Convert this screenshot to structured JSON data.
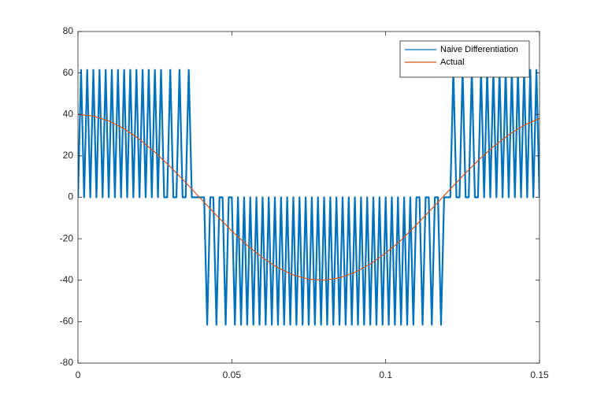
{
  "chart_data": {
    "type": "line",
    "xlim": [
      0,
      0.15
    ],
    "xticks": [
      0,
      0.05,
      0.1,
      0.15
    ],
    "ylim": [
      -80,
      80
    ],
    "yticks": [
      -80,
      -60,
      -40,
      -20,
      0,
      20,
      40,
      60,
      80
    ],
    "legend": "upper right",
    "series": [
      {
        "name": "Naive Differentiation",
        "color": "#0072BD",
        "x": [
          0,
          0.001,
          0.002,
          0.003,
          0.004,
          0.005,
          0.006,
          0.007,
          0.008,
          0.009,
          0.01,
          0.011,
          0.012,
          0.013,
          0.014,
          0.015,
          0.016,
          0.017,
          0.018,
          0.019,
          0.02,
          0.021,
          0.022,
          0.023,
          0.024,
          0.025,
          0.026,
          0.027,
          0.028,
          0.029,
          0.03,
          0.031,
          0.032,
          0.033,
          0.034,
          0.035,
          0.036,
          0.037,
          0.038,
          0.039,
          0.04,
          0.041,
          0.042,
          0.043,
          0.044,
          0.045,
          0.046,
          0.047,
          0.048,
          0.049,
          0.05,
          0.051,
          0.052,
          0.053,
          0.054,
          0.055,
          0.056,
          0.057,
          0.058,
          0.059,
          0.06,
          0.061,
          0.062,
          0.063,
          0.064,
          0.065,
          0.066,
          0.067,
          0.068,
          0.069,
          0.07,
          0.071,
          0.072,
          0.073,
          0.074,
          0.075,
          0.076,
          0.077,
          0.078,
          0.079,
          0.08,
          0.081,
          0.082,
          0.083,
          0.084,
          0.085,
          0.086,
          0.087,
          0.088,
          0.089,
          0.09,
          0.091,
          0.092,
          0.093,
          0.094,
          0.095,
          0.096,
          0.097,
          0.098,
          0.099,
          0.1,
          0.101,
          0.102,
          0.103,
          0.104,
          0.105,
          0.106,
          0.107,
          0.108,
          0.109,
          0.11,
          0.111,
          0.112,
          0.113,
          0.114,
          0.115,
          0.116,
          0.117,
          0.118,
          0.119,
          0.12,
          0.121,
          0.122,
          0.123,
          0.124,
          0.125,
          0.126,
          0.127,
          0.128,
          0.129,
          0.13,
          0.131,
          0.132,
          0.133,
          0.134,
          0.135,
          0.136,
          0.137,
          0.138,
          0.139,
          0.14,
          0.141,
          0.142,
          0.143,
          0.144,
          0.145,
          0.146,
          0.147,
          0.148,
          0.149,
          0.15
        ],
        "values": [
          0,
          61.5,
          0,
          61.5,
          0,
          61.5,
          0,
          61.5,
          0,
          61.5,
          0,
          61.5,
          0,
          61.5,
          0,
          61.5,
          0,
          61.5,
          0,
          61.5,
          0,
          61.5,
          0,
          61.5,
          0,
          61.5,
          0,
          61.5,
          0,
          0,
          61.5,
          0,
          0,
          61.5,
          0,
          0,
          61.5,
          0,
          0,
          0,
          0,
          0,
          -61.5,
          0,
          0,
          -61.5,
          0,
          0,
          -61.5,
          0,
          0,
          -61.5,
          0,
          -61.5,
          0,
          -61.5,
          0,
          -61.5,
          0,
          -61.5,
          0,
          -61.5,
          0,
          -61.5,
          0,
          -61.5,
          0,
          -61.5,
          0,
          -61.5,
          0,
          -61.5,
          0,
          -61.5,
          0,
          -61.5,
          0,
          -61.5,
          0,
          -61.5,
          0,
          -61.5,
          0,
          -61.5,
          0,
          -61.5,
          0,
          -61.5,
          0,
          -61.5,
          0,
          -61.5,
          0,
          -61.5,
          0,
          -61.5,
          0,
          -61.5,
          0,
          -61.5,
          0,
          -61.5,
          0,
          -61.5,
          0,
          -61.5,
          0,
          -61.5,
          0,
          -61.5,
          0,
          0,
          -61.5,
          0,
          0,
          -61.5,
          0,
          0,
          -61.5,
          0,
          0,
          0,
          61.5,
          0,
          0,
          61.5,
          0,
          0,
          61.5,
          0,
          0,
          61.5,
          0,
          61.5,
          0,
          61.5,
          0,
          61.5,
          0,
          61.5,
          0,
          61.5,
          0,
          61.5,
          0,
          61.5,
          0,
          61.5,
          0,
          61.5,
          0
        ]
      },
      {
        "name": "Actual",
        "color": "#D95319",
        "x": [
          0,
          0.005,
          0.01,
          0.015,
          0.02,
          0.025,
          0.03,
          0.035,
          0.04,
          0.045,
          0.05,
          0.055,
          0.06,
          0.065,
          0.07,
          0.075,
          0.08,
          0.085,
          0.09,
          0.095,
          0.1,
          0.105,
          0.11,
          0.115,
          0.12,
          0.125,
          0.13,
          0.135,
          0.14,
          0.145,
          0.15
        ],
        "values": [
          40,
          39.21,
          36.88,
          33.09,
          28,
          21.8,
          14.76,
          7.12,
          -0.8,
          -8.69,
          -16.21,
          -23.13,
          -29.14,
          -34.01,
          -37.51,
          -39.51,
          -39.97,
          -38.86,
          -36.24,
          -32.21,
          -26.96,
          -20.69,
          -13.28,
          -5.53,
          2.41,
          10.25,
          17.68,
          24.43,
          30.17,
          34.79,
          38.01
        ]
      }
    ]
  }
}
